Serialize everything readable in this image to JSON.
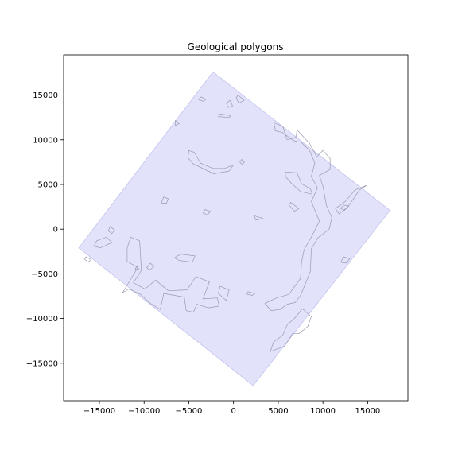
{
  "chart_data": {
    "type": "map",
    "title": "Geological polygons",
    "xlabel": "",
    "ylabel": "",
    "xlim": [
      -19000,
      19500
    ],
    "ylim": [
      -19200,
      19500
    ],
    "xticks": [
      -15000,
      -10000,
      -5000,
      0,
      5000,
      10000,
      15000
    ],
    "yticks": [
      15000,
      10000,
      5000,
      0,
      -5000,
      -10000,
      -15000
    ],
    "xtick_labels": [
      "−15000",
      "−10000",
      "−5000",
      "0",
      "5000",
      "10000",
      "15000"
    ],
    "ytick_labels": [
      "15000",
      "10000",
      "5000",
      "0",
      "−5000",
      "−10000",
      "−15000"
    ],
    "grid": false,
    "colors": {
      "region_fill": "#e2e2fb",
      "region_edge": "#c2c2ee",
      "polygon_edge": "#9a9ab0"
    },
    "region": [
      [
        -2300,
        17600
      ],
      [
        17500,
        2100
      ],
      [
        2200,
        -17500
      ],
      [
        -17300,
        -2100
      ]
    ],
    "polygons": [
      {
        "name": "north-1",
        "points": [
          [
            -3600,
            14800
          ],
          [
            -3100,
            14500
          ],
          [
            -3400,
            14300
          ],
          [
            -3900,
            14500
          ]
        ]
      },
      {
        "name": "north-2",
        "points": [
          [
            -400,
            14400
          ],
          [
            -100,
            13800
          ],
          [
            -600,
            13600
          ],
          [
            -800,
            14100
          ]
        ]
      },
      {
        "name": "north-3",
        "points": [
          [
            500,
            15000
          ],
          [
            1200,
            14400
          ],
          [
            600,
            14100
          ],
          [
            300,
            14700
          ]
        ]
      },
      {
        "name": "north-4",
        "points": [
          [
            -1500,
            12900
          ],
          [
            -300,
            12700
          ],
          [
            -500,
            12500
          ],
          [
            -1700,
            12600
          ]
        ]
      },
      {
        "name": "north-west-1",
        "points": [
          [
            -6500,
            12200
          ],
          [
            -6100,
            11800
          ],
          [
            -6500,
            11600
          ]
        ]
      },
      {
        "name": "central-blob",
        "points": [
          [
            -5000,
            8800
          ],
          [
            -4400,
            8600
          ],
          [
            -3700,
            7400
          ],
          [
            -2300,
            6800
          ],
          [
            -1000,
            6800
          ],
          [
            0,
            7200
          ],
          [
            -500,
            6500
          ],
          [
            -2200,
            6200
          ],
          [
            -4500,
            7300
          ],
          [
            -5100,
            8000
          ]
        ]
      },
      {
        "name": "central-small-1",
        "points": [
          [
            900,
            7800
          ],
          [
            1200,
            7500
          ],
          [
            1000,
            7200
          ],
          [
            700,
            7500
          ]
        ]
      },
      {
        "name": "west-small-1",
        "points": [
          [
            -7800,
            3600
          ],
          [
            -7300,
            3400
          ],
          [
            -7500,
            2900
          ],
          [
            -8100,
            2900
          ]
        ]
      },
      {
        "name": "central-small-2",
        "points": [
          [
            -3200,
            2200
          ],
          [
            -2600,
            2000
          ],
          [
            -2900,
            1600
          ],
          [
            -3400,
            1800
          ]
        ]
      },
      {
        "name": "central-small-3",
        "points": [
          [
            2300,
            1500
          ],
          [
            3300,
            1200
          ],
          [
            2500,
            1000
          ]
        ]
      },
      {
        "name": "west-1",
        "points": [
          [
            -13800,
            300
          ],
          [
            -13300,
            -100
          ],
          [
            -13600,
            -500
          ],
          [
            -14000,
            -200
          ]
        ]
      },
      {
        "name": "west-2",
        "points": [
          [
            -15300,
            -1300
          ],
          [
            -14200,
            -900
          ],
          [
            -13600,
            -1500
          ],
          [
            -14900,
            -2100
          ],
          [
            -15600,
            -1900
          ]
        ]
      },
      {
        "name": "west-3",
        "points": [
          [
            -16500,
            -3100
          ],
          [
            -15900,
            -3400
          ],
          [
            -16300,
            -3700
          ],
          [
            -16700,
            -3300
          ]
        ]
      },
      {
        "name": "south-west-cluster",
        "points": [
          [
            -11500,
            -900
          ],
          [
            -10500,
            -1300
          ],
          [
            -10300,
            -4600
          ],
          [
            -11200,
            -6000
          ],
          [
            -9900,
            -6700
          ],
          [
            -8700,
            -5700
          ],
          [
            -7300,
            -6900
          ],
          [
            -5200,
            -6800
          ],
          [
            -4200,
            -5300
          ],
          [
            -2700,
            -5900
          ],
          [
            -3400,
            -7800
          ],
          [
            -1800,
            -7700
          ],
          [
            -1600,
            -8600
          ],
          [
            -2800,
            -8800
          ],
          [
            -4100,
            -8400
          ],
          [
            -4500,
            -9300
          ],
          [
            -5300,
            -9100
          ],
          [
            -5500,
            -7600
          ],
          [
            -7800,
            -7200
          ],
          [
            -8200,
            -9000
          ],
          [
            -9300,
            -8300
          ],
          [
            -10400,
            -7300
          ],
          [
            -11700,
            -6700
          ],
          [
            -12400,
            -7100
          ],
          [
            -10700,
            -4300
          ],
          [
            -11900,
            -3600
          ],
          [
            -11900,
            -2100
          ]
        ]
      },
      {
        "name": "south-west-small-1",
        "points": [
          [
            -9300,
            -3800
          ],
          [
            -8900,
            -4200
          ],
          [
            -9400,
            -4600
          ],
          [
            -9700,
            -4300
          ]
        ]
      },
      {
        "name": "south-west-small-2",
        "points": [
          [
            -5900,
            -2800
          ],
          [
            -4300,
            -3000
          ],
          [
            -4600,
            -3700
          ],
          [
            -6100,
            -3500
          ],
          [
            -6600,
            -3200
          ]
        ]
      },
      {
        "name": "south-west-small-3",
        "points": [
          [
            -10800,
            -4100
          ],
          [
            -10600,
            -4500
          ],
          [
            -11000,
            -4500
          ]
        ]
      },
      {
        "name": "south-small-1",
        "points": [
          [
            -1500,
            -6400
          ],
          [
            -500,
            -6800
          ],
          [
            -800,
            -8000
          ],
          [
            -1700,
            -7200
          ]
        ]
      },
      {
        "name": "south-small-2",
        "points": [
          [
            1600,
            -7000
          ],
          [
            2400,
            -7200
          ],
          [
            2100,
            -7400
          ],
          [
            1500,
            -7300
          ]
        ]
      },
      {
        "name": "east-1",
        "points": [
          [
            12300,
            -3100
          ],
          [
            13000,
            -3300
          ],
          [
            12600,
            -3800
          ],
          [
            12000,
            -3700
          ]
        ]
      },
      {
        "name": "east-2",
        "points": [
          [
            6400,
            3000
          ],
          [
            7300,
            2300
          ],
          [
            6800,
            2000
          ],
          [
            6200,
            2700
          ]
        ]
      },
      {
        "name": "east-3",
        "points": [
          [
            12300,
            2700
          ],
          [
            12900,
            2600
          ],
          [
            12400,
            2100
          ],
          [
            12000,
            2300
          ]
        ]
      },
      {
        "name": "north-east-main",
        "points": [
          [
            4500,
            11900
          ],
          [
            5500,
            11500
          ],
          [
            6000,
            10000
          ],
          [
            7000,
            10300
          ],
          [
            7100,
            11100
          ],
          [
            8500,
            9600
          ],
          [
            9300,
            8100
          ],
          [
            10000,
            8800
          ],
          [
            10800,
            7900
          ],
          [
            10800,
            6700
          ],
          [
            9600,
            6000
          ],
          [
            10000,
            4800
          ],
          [
            10400,
            2600
          ],
          [
            11000,
            1300
          ],
          [
            10700,
            0
          ],
          [
            9400,
            -1000
          ],
          [
            8700,
            -2200
          ],
          [
            8600,
            -4700
          ],
          [
            8000,
            -6200
          ],
          [
            7500,
            -7400
          ],
          [
            6900,
            -8200
          ],
          [
            6000,
            -8400
          ],
          [
            5200,
            -9000
          ],
          [
            4200,
            -9100
          ],
          [
            3500,
            -8300
          ],
          [
            4800,
            -7700
          ],
          [
            6200,
            -7300
          ],
          [
            7500,
            -5500
          ],
          [
            7600,
            -3700
          ],
          [
            7900,
            -2300
          ],
          [
            8700,
            -900
          ],
          [
            9600,
            900
          ],
          [
            8700,
            3100
          ],
          [
            9400,
            4600
          ],
          [
            8700,
            5900
          ],
          [
            9100,
            7400
          ],
          [
            8500,
            8800
          ],
          [
            7600,
            9700
          ],
          [
            6700,
            9900
          ],
          [
            5500,
            10800
          ],
          [
            4700,
            11000
          ]
        ]
      },
      {
        "name": "north-east-inner",
        "points": [
          [
            5800,
            6400
          ],
          [
            7100,
            6300
          ],
          [
            7600,
            5100
          ],
          [
            8600,
            4500
          ],
          [
            8800,
            3900
          ],
          [
            7500,
            4200
          ],
          [
            6500,
            5100
          ],
          [
            5800,
            5900
          ]
        ]
      },
      {
        "name": "north-east-strip",
        "points": [
          [
            14900,
            4900
          ],
          [
            14100,
            4400
          ],
          [
            12800,
            2500
          ],
          [
            11800,
            1700
          ],
          [
            11400,
            2300
          ],
          [
            12500,
            3100
          ],
          [
            13600,
            4400
          ]
        ]
      },
      {
        "name": "south-east",
        "points": [
          [
            7700,
            -8900
          ],
          [
            8700,
            -9800
          ],
          [
            8300,
            -10900
          ],
          [
            7300,
            -11700
          ],
          [
            6600,
            -11700
          ],
          [
            5700,
            -13100
          ],
          [
            4100,
            -13700
          ],
          [
            4500,
            -12600
          ],
          [
            5500,
            -11900
          ],
          [
            6000,
            -10700
          ],
          [
            6900,
            -9900
          ]
        ]
      }
    ]
  }
}
